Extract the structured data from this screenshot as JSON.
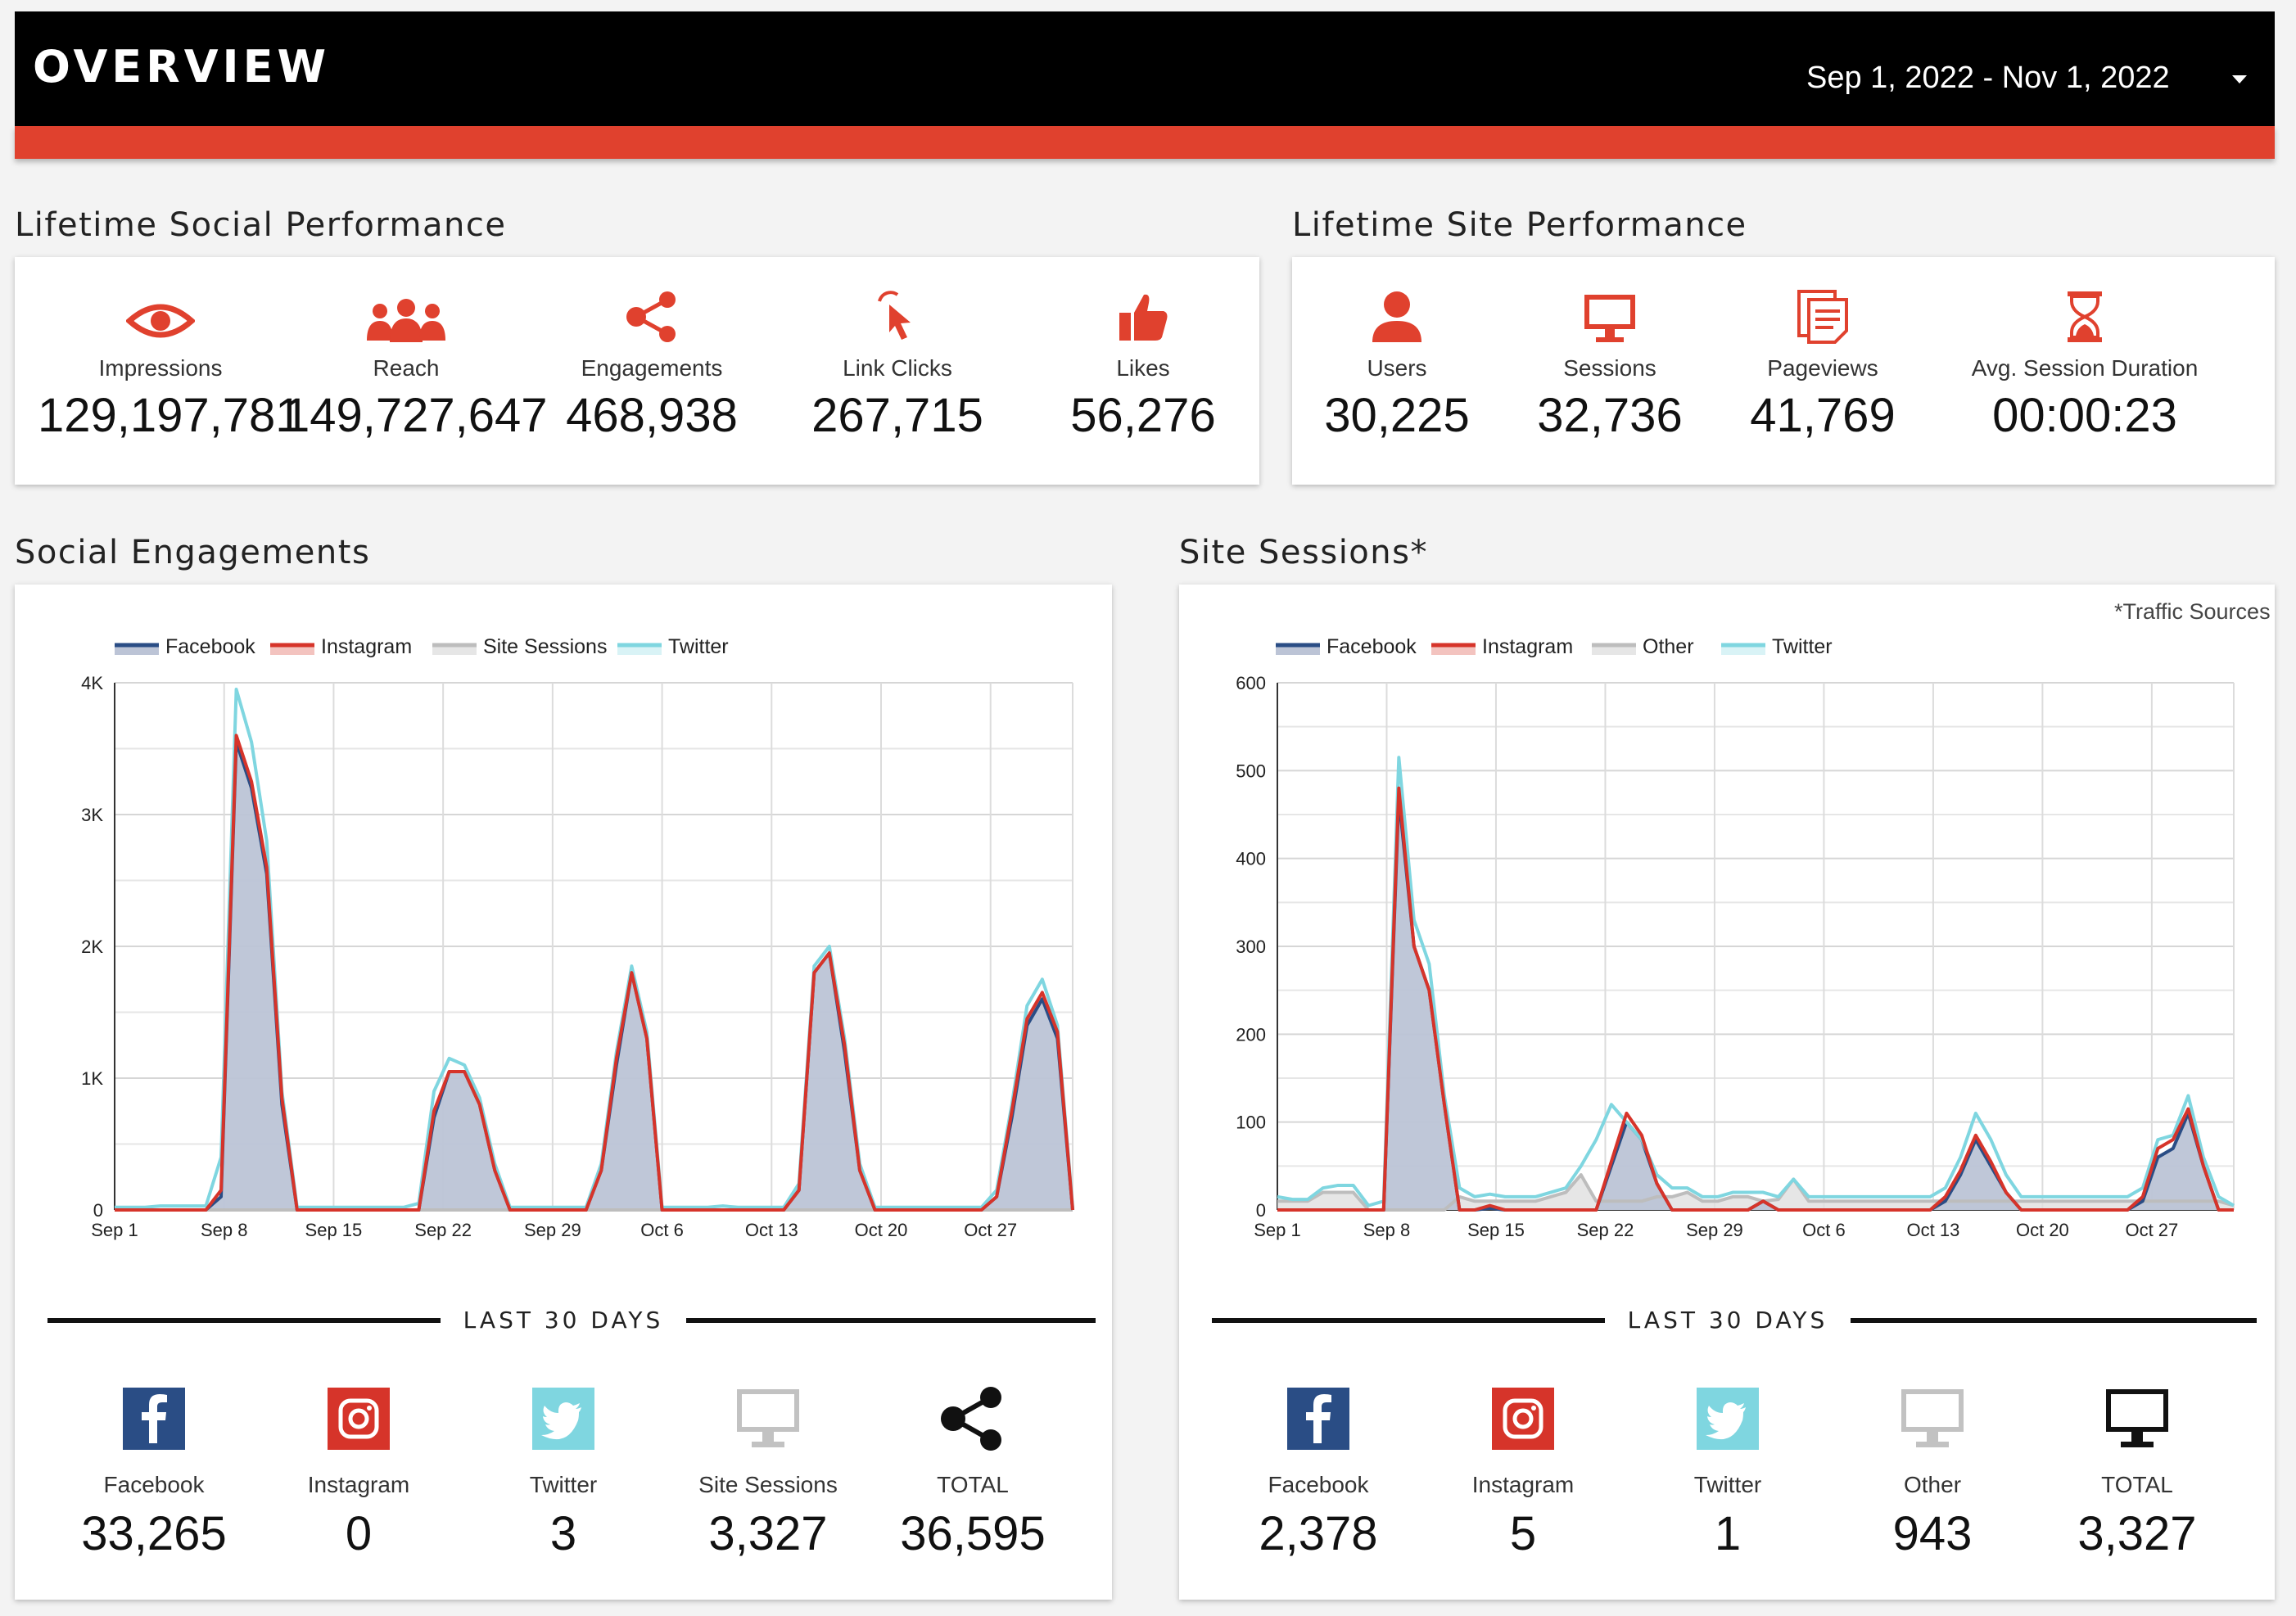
{
  "header": {
    "title": "OVERVIEW",
    "date_range": "Sep 1, 2022 - Nov 1, 2022"
  },
  "colors": {
    "accent": "#e0412e",
    "facebook": "#2a4d85",
    "instagram": "#d6342a",
    "twitter": "#7fd6e0",
    "gray": "#bdbdbd",
    "area": "#bcc4d6"
  },
  "social_perf": {
    "title": "Lifetime Social Performance",
    "items": [
      {
        "label": "Impressions",
        "value": "129,197,781",
        "icon": "eye-icon"
      },
      {
        "label": "Reach",
        "value": "149,727,647",
        "icon": "people-icon"
      },
      {
        "label": "Engagements",
        "value": "468,938",
        "icon": "share-icon"
      },
      {
        "label": "Link Clicks",
        "value": "267,715",
        "icon": "cursor-icon"
      },
      {
        "label": "Likes",
        "value": "56,276",
        "icon": "thumbs-up-icon"
      }
    ]
  },
  "site_perf": {
    "title": "Lifetime Site Performance",
    "items": [
      {
        "label": "Users",
        "value": "30,225",
        "icon": "user-icon"
      },
      {
        "label": "Sessions",
        "value": "32,736",
        "icon": "monitor-icon"
      },
      {
        "label": "Pageviews",
        "value": "41,769",
        "icon": "pages-icon"
      },
      {
        "label": "Avg. Session Duration",
        "value": "00:00:23",
        "icon": "hourglass-icon"
      }
    ]
  },
  "social_eng": {
    "title": "Social Engagements",
    "last30_label": "LAST 30 DAYS",
    "bottom": [
      {
        "label": "Facebook",
        "value": "33,265",
        "icon": "facebook-icon"
      },
      {
        "label": "Instagram",
        "value": "0",
        "icon": "instagram-icon"
      },
      {
        "label": "Twitter",
        "value": "3",
        "icon": "twitter-icon"
      },
      {
        "label": "Site Sessions",
        "value": "3,327",
        "icon": "monitor-icon"
      },
      {
        "label": "TOTAL",
        "value": "36,595",
        "icon": "share-icon"
      }
    ]
  },
  "site_sessions": {
    "title": "Site Sessions*",
    "note": "*Traffic Sources",
    "last30_label": "LAST 30 DAYS",
    "bottom": [
      {
        "label": "Facebook",
        "value": "2,378",
        "icon": "facebook-icon"
      },
      {
        "label": "Instagram",
        "value": "5",
        "icon": "instagram-icon"
      },
      {
        "label": "Twitter",
        "value": "1",
        "icon": "twitter-icon"
      },
      {
        "label": "Other",
        "value": "943",
        "icon": "monitor-icon"
      },
      {
        "label": "TOTAL",
        "value": "3,327",
        "icon": "monitor-icon"
      }
    ]
  },
  "chart_data": [
    {
      "type": "area",
      "ylim": [
        0,
        4000
      ],
      "yticks": [
        0,
        1000,
        2000,
        3000,
        4000
      ],
      "ytick_labels": [
        "0",
        "1K",
        "2K",
        "3K",
        "4K"
      ],
      "x_tick_labels": [
        "Sep 1",
        "Sep 8",
        "Sep 15",
        "Sep 22",
        "Sep 29",
        "Oct 6",
        "Oct 13",
        "Oct 20",
        "Oct 27"
      ],
      "legend": [
        "Facebook",
        "Instagram",
        "Site Sessions",
        "Twitter"
      ],
      "series": [
        {
          "name": "Facebook",
          "values": [
            0,
            0,
            0,
            0,
            0,
            0,
            0,
            100,
            3550,
            3200,
            2550,
            800,
            0,
            0,
            0,
            0,
            0,
            0,
            0,
            0,
            0,
            700,
            1050,
            1050,
            800,
            300,
            0,
            0,
            0,
            0,
            0,
            0,
            300,
            1100,
            1800,
            1300,
            0,
            0,
            0,
            0,
            0,
            0,
            0,
            0,
            0,
            150,
            1800,
            1950,
            1200,
            300,
            0,
            0,
            0,
            0,
            0,
            0,
            0,
            0,
            100,
            700,
            1400,
            1600,
            1300,
            0
          ]
        },
        {
          "name": "Instagram",
          "values": [
            0,
            0,
            0,
            0,
            0,
            0,
            0,
            150,
            3600,
            3250,
            2600,
            850,
            0,
            0,
            0,
            0,
            0,
            0,
            0,
            0,
            0,
            750,
            1050,
            1050,
            800,
            300,
            0,
            0,
            0,
            0,
            0,
            0,
            300,
            1150,
            1800,
            1300,
            0,
            0,
            0,
            0,
            0,
            0,
            0,
            0,
            0,
            150,
            1800,
            1950,
            1250,
            300,
            0,
            0,
            0,
            0,
            0,
            0,
            0,
            0,
            100,
            750,
            1450,
            1650,
            1350,
            0
          ]
        },
        {
          "name": "Site Sessions",
          "values": [
            0,
            0,
            0,
            0,
            0,
            0,
            0,
            0,
            0,
            0,
            0,
            0,
            0,
            0,
            0,
            0,
            0,
            0,
            0,
            0,
            0,
            0,
            0,
            0,
            0,
            0,
            0,
            0,
            0,
            0,
            0,
            0,
            0,
            0,
            0,
            0,
            0,
            0,
            0,
            0,
            0,
            0,
            0,
            0,
            0,
            0,
            0,
            0,
            0,
            0,
            0,
            0,
            0,
            0,
            0,
            0,
            0,
            0,
            0,
            0,
            0,
            0,
            0,
            0
          ]
        },
        {
          "name": "Twitter",
          "values": [
            20,
            20,
            20,
            30,
            30,
            30,
            30,
            400,
            3950,
            3550,
            2800,
            900,
            20,
            20,
            20,
            20,
            20,
            20,
            20,
            20,
            50,
            900,
            1150,
            1100,
            850,
            350,
            20,
            20,
            20,
            20,
            20,
            20,
            350,
            1200,
            1850,
            1350,
            20,
            20,
            20,
            20,
            30,
            20,
            20,
            20,
            20,
            200,
            1850,
            2000,
            1300,
            350,
            20,
            20,
            20,
            20,
            20,
            20,
            20,
            20,
            150,
            800,
            1550,
            1750,
            1400,
            20
          ]
        }
      ]
    },
    {
      "type": "area",
      "ylim": [
        0,
        600
      ],
      "yticks": [
        0,
        100,
        200,
        300,
        400,
        500,
        600
      ],
      "ytick_labels": [
        "0",
        "100",
        "200",
        "300",
        "400",
        "500",
        "600"
      ],
      "x_tick_labels": [
        "Sep 1",
        "Sep 8",
        "Sep 15",
        "Sep 22",
        "Sep 29",
        "Oct 6",
        "Oct 13",
        "Oct 20",
        "Oct 27"
      ],
      "legend": [
        "Facebook",
        "Instagram",
        "Other",
        "Twitter"
      ],
      "series": [
        {
          "name": "Facebook",
          "values": [
            0,
            0,
            0,
            0,
            0,
            0,
            0,
            0,
            470,
            300,
            250,
            120,
            0,
            0,
            2,
            0,
            0,
            0,
            0,
            0,
            0,
            0,
            50,
            100,
            80,
            30,
            0,
            0,
            0,
            0,
            0,
            0,
            10,
            0,
            0,
            0,
            0,
            0,
            0,
            0,
            0,
            0,
            0,
            0,
            10,
            40,
            80,
            50,
            20,
            0,
            0,
            0,
            0,
            0,
            0,
            0,
            0,
            10,
            60,
            70,
            110,
            50,
            0,
            0
          ]
        },
        {
          "name": "Instagram",
          "values": [
            0,
            0,
            0,
            0,
            0,
            0,
            0,
            0,
            480,
            300,
            250,
            120,
            0,
            0,
            5,
            0,
            0,
            0,
            0,
            0,
            0,
            0,
            55,
            110,
            85,
            30,
            0,
            0,
            0,
            0,
            0,
            0,
            10,
            0,
            0,
            0,
            0,
            0,
            0,
            0,
            0,
            0,
            0,
            0,
            15,
            45,
            85,
            55,
            20,
            0,
            0,
            0,
            0,
            0,
            0,
            0,
            0,
            15,
            70,
            80,
            115,
            50,
            0,
            0
          ]
        },
        {
          "name": "Other",
          "values": [
            10,
            10,
            10,
            20,
            20,
            20,
            0,
            0,
            0,
            0,
            0,
            0,
            15,
            10,
            10,
            10,
            10,
            10,
            15,
            20,
            40,
            10,
            10,
            10,
            10,
            15,
            15,
            20,
            10,
            10,
            15,
            15,
            10,
            12,
            35,
            10,
            10,
            10,
            10,
            10,
            10,
            10,
            10,
            10,
            10,
            10,
            10,
            10,
            10,
            10,
            10,
            10,
            10,
            10,
            10,
            10,
            10,
            10,
            10,
            10,
            10,
            10,
            10,
            5
          ]
        },
        {
          "name": "Twitter",
          "values": [
            15,
            12,
            12,
            25,
            28,
            28,
            5,
            10,
            515,
            330,
            280,
            130,
            25,
            15,
            18,
            15,
            15,
            15,
            20,
            25,
            50,
            80,
            120,
            100,
            80,
            40,
            25,
            25,
            15,
            15,
            20,
            20,
            20,
            15,
            35,
            15,
            15,
            15,
            15,
            15,
            15,
            15,
            15,
            15,
            25,
            60,
            110,
            80,
            40,
            15,
            15,
            15,
            15,
            15,
            15,
            15,
            15,
            25,
            80,
            85,
            130,
            60,
            15,
            5
          ]
        }
      ]
    }
  ]
}
